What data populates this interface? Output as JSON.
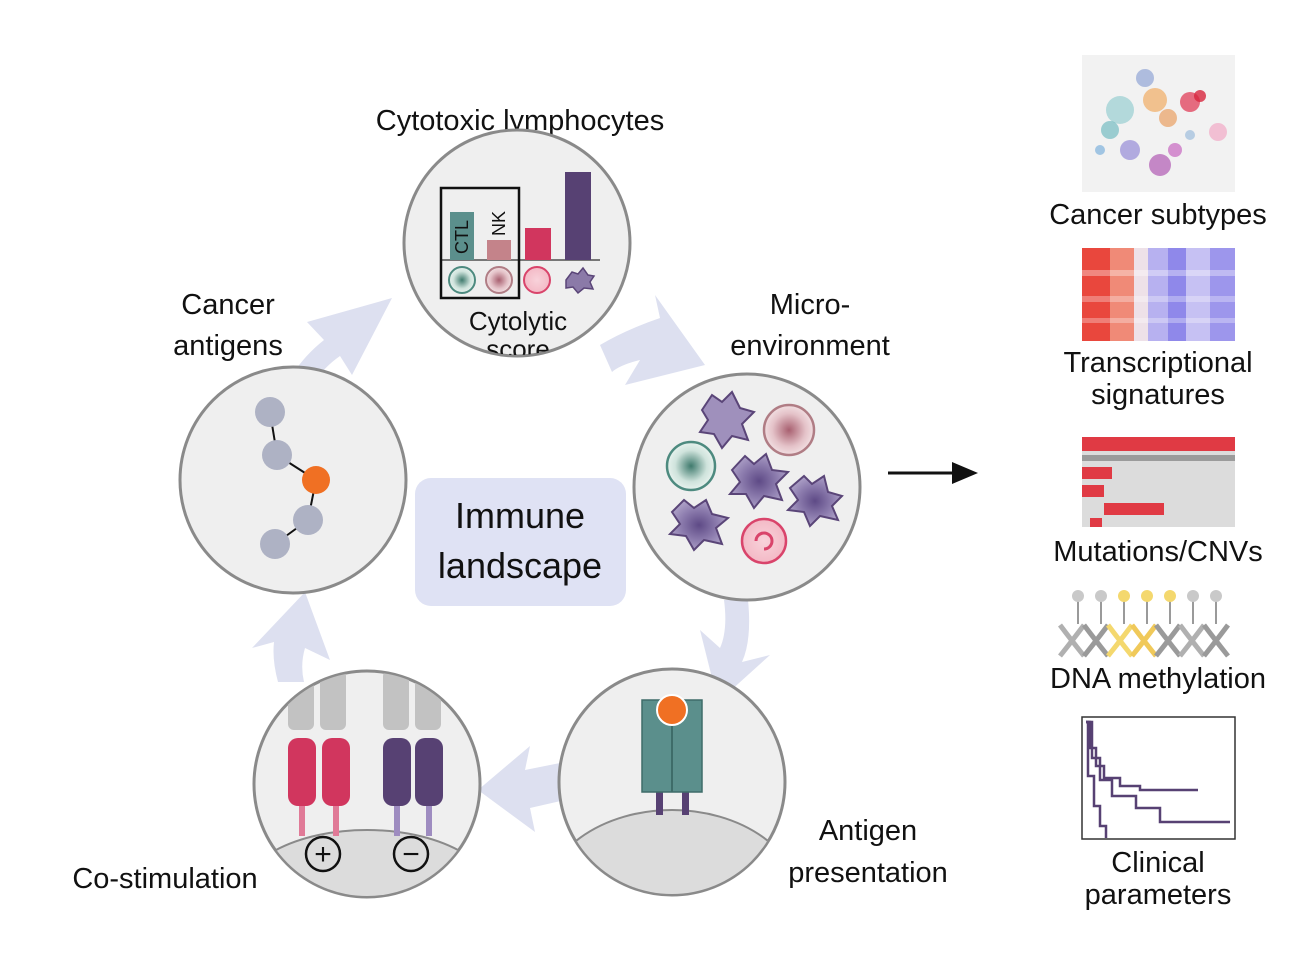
{
  "center": {
    "line1": "Immune",
    "line2": "landscape"
  },
  "nodes": {
    "cytotoxic": {
      "title": "Cytotoxic lymphocytes",
      "bar_ctl": "CTL",
      "bar_nk": "NK",
      "score_line1": "Cytolytic",
      "score_line2": "score"
    },
    "micro": {
      "line1": "Micro-",
      "line2": "environment"
    },
    "antigen_presentation": {
      "line1": "Antigen",
      "line2": "presentation"
    },
    "costim": {
      "label": "Co-stimulation",
      "plus": "+",
      "minus": "−"
    },
    "cancer_antigens": {
      "line1": "Cancer",
      "line2": "antigens"
    }
  },
  "outputs": {
    "subtypes": "Cancer subtypes",
    "transcriptional_1": "Transcriptional",
    "transcriptional_2": "signatures",
    "mutations": "Mutations/CNVs",
    "methylation": "DNA methylation",
    "clinical_1": "Clinical",
    "clinical_2": "parameters"
  },
  "colors": {
    "circle_fill": "#efefef",
    "circle_stroke": "#8a8a8a",
    "arrow": "#dde0f0",
    "center_box": "#dfe2f4",
    "teal": "#5b8f8c",
    "rose": "#c4838a",
    "crimson": "#d1365e",
    "purple": "#574173",
    "orange": "#f07023",
    "node_gray": "#aeb2c4"
  }
}
